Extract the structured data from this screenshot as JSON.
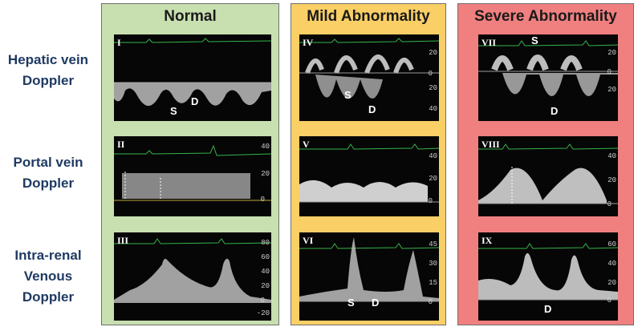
{
  "columns": [
    {
      "title": "Normal",
      "bg": "#c8dfb0"
    },
    {
      "title": "Mild Abnormality",
      "bg": "#f9cf66"
    },
    {
      "title": "Severe Abnormality",
      "bg": "#f07f7f"
    }
  ],
  "rows": [
    {
      "label_lines": [
        "Hepatic vein",
        "Doppler"
      ]
    },
    {
      "label_lines": [
        "Portal vein",
        "Doppler"
      ]
    },
    {
      "label_lines": [
        "Intra-renal",
        "Venous",
        "Doppler"
      ]
    }
  ],
  "panels": {
    "p1": {
      "numeral": "I",
      "marks": [
        "S",
        "D"
      ],
      "scale": []
    },
    "p2": {
      "numeral": "II",
      "marks": [],
      "scale": [
        "40",
        "20",
        "0"
      ]
    },
    "p3": {
      "numeral": "III",
      "marks": [],
      "scale": [
        "80",
        "60",
        "40",
        "20",
        "0",
        "-20"
      ]
    },
    "p4": {
      "numeral": "IV",
      "marks": [
        "S",
        "D"
      ],
      "scale": [
        "20",
        "0",
        "20",
        "40"
      ]
    },
    "p5": {
      "numeral": "V",
      "marks": [],
      "scale": [
        "40",
        "20",
        "0"
      ]
    },
    "p6": {
      "numeral": "VI",
      "marks": [
        "S",
        "D"
      ],
      "scale": [
        "45",
        "30",
        "15",
        "0"
      ]
    },
    "p7": {
      "numeral": "VII",
      "marks": [
        "S",
        "D"
      ],
      "scale": [
        "20",
        "0",
        "20"
      ]
    },
    "p8": {
      "numeral": "VIII",
      "marks": [],
      "scale": [
        "40",
        "20",
        "0"
      ]
    },
    "p9": {
      "numeral": "IX",
      "marks": [
        "D"
      ],
      "scale": [
        "60",
        "40",
        "20",
        "0"
      ]
    }
  },
  "colors": {
    "trace": "#bdbdbd",
    "ecg": "#35b44a",
    "baseline": "#9a9a9a"
  }
}
